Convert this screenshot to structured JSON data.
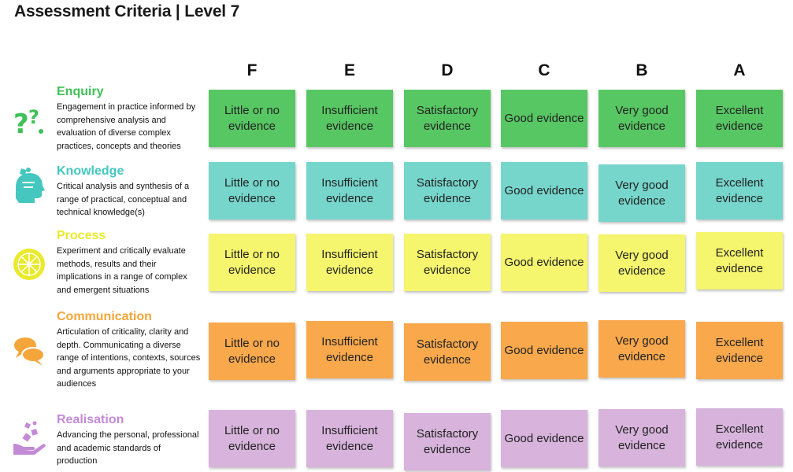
{
  "title": "Assessment Criteria | Level 7",
  "grades": [
    "F",
    "E",
    "D",
    "C",
    "B",
    "A"
  ],
  "levels": [
    "Little or no evidence",
    "Insufficient evidence",
    "Satisfactory evidence",
    "Good evidence",
    "Very good evidence",
    "Excellent evidence"
  ],
  "criteria": [
    {
      "title": "Enquiry",
      "description": "Engagement in practice informed by comprehensive analysis and evaluation of diverse complex practices, concepts and theories",
      "icon": "question-marks-icon",
      "color": "#3fc157",
      "cell_color": "#57c763"
    },
    {
      "title": "Knowledge",
      "description": "Critical analysis and synthesis of a range of practical, conceptual and technical knowledge(s)",
      "icon": "head-icon",
      "color": "#45c7bf",
      "cell_color": "#76d6cc"
    },
    {
      "title": "Process",
      "description": "Experiment and critically evaluate methods, results and their implications in a range of complex and emergent situations",
      "icon": "wheel-icon",
      "color": "#eaea2c",
      "cell_color": "#f5f56e"
    },
    {
      "title": "Communication",
      "description": "Articulation of criticality, clarity and depth. Communicating a diverse range of intentions, contexts, sources and arguments appropriate to your audiences",
      "icon": "speech-bubbles-icon",
      "color": "#f5a63a",
      "cell_color": "#f9a84c"
    },
    {
      "title": "Realisation",
      "description": "Advancing the personal, professional and academic standards of production",
      "icon": "hand-icon",
      "color": "#c38ad6",
      "cell_color": "#d8b4dd"
    }
  ]
}
